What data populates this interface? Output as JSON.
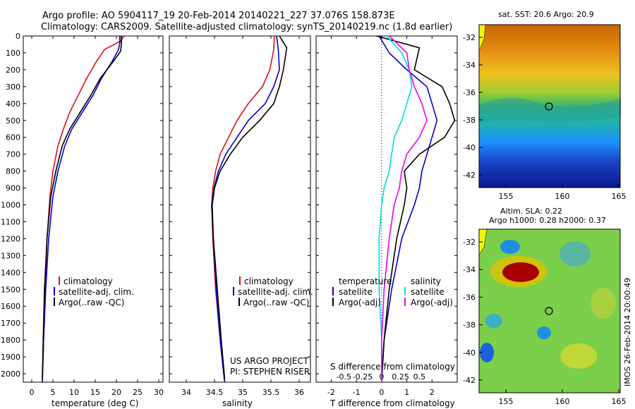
{
  "header": {
    "line1": "Argo profile: AO 5904117_19 20-Feb-2014 20140221_227 37.076S 158.873E",
    "line2": "Climatology: CARS2009. Satellite-adjusted climatology: synTS_20140219.nc (1.8d earlier)"
  },
  "colors": {
    "climatology": "#dd1111",
    "satellite": "#0000cc",
    "argo": "#000000",
    "cyan": "#00dddd",
    "magenta": "#ee00ee"
  },
  "chart_data": [
    {
      "type": "line",
      "xlabel": "temperature (deg C)",
      "ylim": [
        2050,
        0
      ],
      "xlim": [
        -2,
        31
      ],
      "yticks": [
        0,
        100,
        200,
        300,
        400,
        500,
        600,
        700,
        800,
        900,
        1000,
        1100,
        1200,
        1300,
        1400,
        1500,
        1600,
        1700,
        1800,
        1900,
        2000
      ],
      "xticks": [
        0,
        5,
        10,
        15,
        20,
        25,
        30
      ],
      "legend": [
        "climatology",
        "satellite-adj. clim.",
        "Argo(..raw -QC)"
      ],
      "series": [
        {
          "name": "climatology",
          "color": "#dd1111",
          "x": [
            21.8,
            21.0,
            17.2,
            15.3,
            13.0,
            11.0,
            9.0,
            7.5,
            6.2,
            5.0,
            4.3,
            3.6,
            3.2,
            2.8,
            2.5
          ],
          "y": [
            0,
            30,
            80,
            150,
            250,
            350,
            450,
            550,
            650,
            800,
            950,
            1200,
            1500,
            1800,
            2050
          ]
        },
        {
          "name": "satellite-adj. clim.",
          "color": "#0000cc",
          "x": [
            20.8,
            20.8,
            20.5,
            19.0,
            16.5,
            14.5,
            12.0,
            9.5,
            7.8,
            6.2,
            5.0,
            4.0,
            3.3,
            2.8,
            2.5
          ],
          "y": [
            0,
            40,
            80,
            150,
            250,
            350,
            450,
            550,
            650,
            800,
            950,
            1200,
            1500,
            1800,
            2050
          ]
        },
        {
          "name": "Argo(..raw -QC)",
          "color": "#000000",
          "x": [
            21.2,
            21.2,
            21.0,
            19.0,
            16.2,
            14.0,
            11.5,
            9.0,
            7.2,
            5.7,
            4.5,
            3.6,
            3.0,
            2.7,
            2.5
          ],
          "y": [
            0,
            40,
            90,
            160,
            250,
            350,
            450,
            550,
            650,
            800,
            950,
            1200,
            1500,
            1800,
            2030
          ]
        }
      ]
    },
    {
      "type": "line",
      "xlabel": "salinity",
      "ylim": [
        2050,
        0
      ],
      "xlim": [
        33.7,
        36.2
      ],
      "xticks": [
        34,
        34.5,
        35,
        35.5,
        36
      ],
      "legend": [
        "climatology",
        "satellite-adj. clim.",
        "Argo(..raw -QC)"
      ],
      "series": [
        {
          "name": "climatology",
          "color": "#dd1111",
          "x": [
            35.56,
            35.55,
            35.48,
            35.35,
            35.1,
            34.9,
            34.75,
            34.6,
            34.52,
            34.47,
            34.45,
            34.47,
            34.52,
            34.6,
            34.68
          ],
          "y": [
            0,
            80,
            200,
            300,
            400,
            500,
            600,
            700,
            800,
            900,
            1000,
            1200,
            1500,
            1800,
            2050
          ]
        },
        {
          "name": "satellite-adj. clim.",
          "color": "#0000cc",
          "x": [
            35.6,
            35.63,
            35.65,
            35.55,
            35.4,
            35.1,
            34.9,
            34.7,
            34.57,
            34.49,
            34.45,
            34.48,
            34.53,
            34.6,
            34.68
          ],
          "y": [
            0,
            80,
            200,
            300,
            400,
            500,
            600,
            700,
            800,
            900,
            1000,
            1200,
            1500,
            1800,
            2050
          ]
        },
        {
          "name": "Argo(..raw -QC)",
          "color": "#000000",
          "x": [
            35.65,
            35.78,
            35.72,
            35.65,
            35.55,
            35.3,
            35.0,
            34.78,
            34.6,
            34.5,
            34.46,
            34.48,
            34.55,
            34.62,
            34.68
          ],
          "y": [
            0,
            70,
            200,
            300,
            400,
            500,
            600,
            700,
            800,
            900,
            1000,
            1200,
            1500,
            1800,
            2030
          ]
        }
      ],
      "annotation": [
        "US ARGO PROJECT",
        "PI: STEPHEN RISER"
      ]
    },
    {
      "type": "line",
      "xlabel": "T difference from climatology",
      "xlabel2": "S difference from climatology",
      "ylim": [
        2050,
        0
      ],
      "xlim": [
        -2.6,
        3.0
      ],
      "xticks": [
        -2,
        -1,
        0,
        1,
        2
      ],
      "xticks_s": [
        "-0.5",
        "-0.25",
        "0",
        "0.25",
        "0.5"
      ],
      "legend_temperature": [
        "temperature",
        "satellite",
        "Argo(-adj)"
      ],
      "legend_salinity": [
        "salinity",
        "satellite",
        "Argo(-adj)"
      ],
      "series": [
        {
          "name": "satellite",
          "color": "#0000cc",
          "x": [
            -0.1,
            0.3,
            1.0,
            1.8,
            2.0,
            2.2,
            2.0,
            1.8,
            1.6,
            1.5,
            1.3,
            0.8,
            0.4,
            0.1,
            0.0
          ],
          "y": [
            0,
            100,
            200,
            300,
            400,
            500,
            600,
            700,
            800,
            900,
            1000,
            1200,
            1500,
            1800,
            2050
          ]
        },
        {
          "name": "Argo(-adj)",
          "color": "#000000",
          "x": [
            -0.2,
            1.5,
            1.3,
            2.4,
            2.7,
            2.9,
            2.5,
            1.5,
            0.9,
            1.0,
            0.9,
            0.6,
            0.3,
            0.1,
            0.0
          ],
          "y": [
            0,
            70,
            200,
            300,
            400,
            500,
            600,
            700,
            800,
            900,
            1000,
            1200,
            1500,
            1800,
            2030
          ]
        },
        {
          "name": "satellite",
          "color": "#00dddd",
          "x": [
            0.2,
            0.8,
            1.1,
            1.2,
            1.0,
            0.8,
            0.5,
            0.4,
            0.3,
            0.1,
            0.0,
            -0.1,
            -0.1,
            0.0,
            0.0
          ],
          "y": [
            0,
            100,
            200,
            300,
            400,
            500,
            600,
            700,
            800,
            900,
            1000,
            1200,
            1500,
            1800,
            2050
          ]
        },
        {
          "name": "Argo(-adj)",
          "color": "#ee00ee",
          "x": [
            0.3,
            1.0,
            1.1,
            1.3,
            1.6,
            1.8,
            1.5,
            1.0,
            0.8,
            0.7,
            0.5,
            0.3,
            0.1,
            0.0,
            0.0
          ],
          "y": [
            0,
            100,
            200,
            300,
            400,
            500,
            600,
            700,
            800,
            900,
            1000,
            1200,
            1500,
            1800,
            2050
          ]
        }
      ]
    },
    {
      "type": "heatmap",
      "title": "sat. SST: 20.6 Argo: 20.9",
      "xticks": [
        155,
        160,
        165
      ],
      "yticks": [
        -32,
        -34,
        -36,
        -38,
        -40,
        -42
      ]
    },
    {
      "type": "heatmap",
      "title_line1": "Altim. SLA: 0.22",
      "title_line2": "Argo h1000: 0.28 h2000: 0.37",
      "xticks": [
        155,
        160,
        165
      ],
      "yticks": [
        -32,
        -34,
        -36,
        -38,
        -40,
        -42
      ],
      "side_text": "IMOS 26-Feb-2014 20:00:49"
    }
  ]
}
